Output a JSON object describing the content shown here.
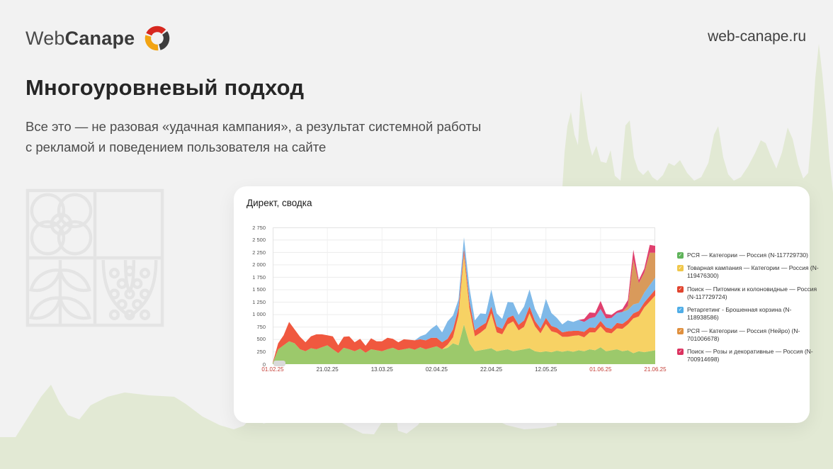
{
  "page": {
    "background": "#f2f2f2",
    "silhouette_color": "#e2e9d4",
    "card_background": "#ffffff"
  },
  "header": {
    "logo_part1": "Web",
    "logo_part2": "Canape",
    "logo_colors": {
      "red": "#d7281f",
      "dark": "#3d3d3d",
      "yellow": "#f2a413"
    },
    "site_url": "web-canape.ru"
  },
  "main": {
    "title": "Многоуровневый подход",
    "subtitle_line1": "Все это — не разовая «удачная кампания», а результат системной работы",
    "subtitle_line2": "с рекламой и поведением пользователя на сайте"
  },
  "chart_card": {
    "title": "Директ, сводка"
  },
  "chart_data": {
    "type": "area",
    "stacked": true,
    "title": "Директ, сводка",
    "grid": true,
    "legend_position": "right",
    "ylim": [
      0,
      2750
    ],
    "y_tick_step": 250,
    "y_tick_labels": [
      "0",
      "250",
      "500",
      "750",
      "1 000",
      "1 250",
      "1 500",
      "1 750",
      "2 000",
      "2 250",
      "2 500",
      "2 750"
    ],
    "x_tick_indices": [
      0,
      10,
      20,
      30,
      40,
      50,
      60,
      70
    ],
    "x_ticks": [
      {
        "label": "01.02.25",
        "holiday": true
      },
      {
        "label": "21.02.25",
        "holiday": false
      },
      {
        "label": "13.03.25",
        "holiday": false
      },
      {
        "label": "02.04.25",
        "holiday": false
      },
      {
        "label": "22.04.25",
        "holiday": false
      },
      {
        "label": "12.05.25",
        "holiday": false
      },
      {
        "label": "01.06.25",
        "holiday": true
      },
      {
        "label": "21.06.25",
        "holiday": true
      }
    ],
    "series": [
      {
        "name": "РСЯ — Категории — Россия (N-117729730)",
        "color": "#9cc96b",
        "swatch": "#5fb35a",
        "values": [
          20,
          300,
          380,
          460,
          420,
          300,
          260,
          320,
          300,
          340,
          380,
          300,
          220,
          330,
          300,
          260,
          310,
          230,
          300,
          280,
          260,
          300,
          330,
          280,
          300,
          320,
          290,
          340,
          300,
          330,
          360,
          300,
          330,
          420,
          380,
          800,
          420,
          260,
          280,
          300,
          320,
          260,
          280,
          300,
          260,
          280,
          300,
          320,
          260,
          240,
          260,
          240,
          270,
          250,
          270,
          250,
          280,
          260,
          300,
          280,
          340,
          260,
          280,
          300,
          260,
          280,
          220,
          260,
          240,
          260,
          280
        ]
      },
      {
        "name": "Товарная кампания — Категории — Россия (N-119476300)",
        "color": "#f7d264",
        "swatch": "#f0c74a",
        "values": [
          0,
          0,
          0,
          0,
          0,
          0,
          0,
          0,
          0,
          0,
          0,
          0,
          0,
          0,
          0,
          0,
          0,
          0,
          0,
          0,
          0,
          0,
          0,
          0,
          0,
          0,
          0,
          0,
          0,
          0,
          0,
          0,
          60,
          120,
          600,
          1400,
          700,
          300,
          350,
          420,
          700,
          380,
          320,
          500,
          600,
          400,
          450,
          700,
          500,
          380,
          550,
          420,
          360,
          300,
          280,
          320,
          300,
          280,
          340,
          360,
          420,
          380,
          340,
          420,
          450,
          520,
          700,
          700,
          900,
          1000,
          1100
        ]
      },
      {
        "name": "Поиск — Питомник и колоновидные — Россия (N-117729724)",
        "color": "#f0583f",
        "swatch": "#e1442e",
        "values": [
          10,
          120,
          200,
          390,
          280,
          250,
          180,
          240,
          300,
          260,
          200,
          260,
          160,
          220,
          260,
          180,
          200,
          140,
          220,
          180,
          200,
          230,
          180,
          160,
          200,
          170,
          190,
          160,
          180,
          200,
          170,
          140,
          120,
          160,
          140,
          120,
          140,
          120,
          130,
          110,
          140,
          120,
          110,
          130,
          120,
          110,
          130,
          140,
          110,
          100,
          120,
          110,
          100,
          90,
          110,
          100,
          90,
          110,
          100,
          90,
          110,
          100,
          90,
          110,
          100,
          90,
          100,
          110,
          100,
          110,
          120
        ]
      },
      {
        "name": "Ретаргетинг - Брошенная корзина (N-118938586)",
        "color": "#7fb9e8",
        "swatch": "#4fade7",
        "values": [
          0,
          0,
          0,
          0,
          0,
          0,
          0,
          0,
          0,
          0,
          0,
          0,
          0,
          0,
          0,
          0,
          0,
          0,
          0,
          0,
          0,
          0,
          0,
          0,
          0,
          0,
          0,
          60,
          120,
          180,
          260,
          200,
          350,
          280,
          180,
          230,
          280,
          200,
          260,
          180,
          340,
          260,
          200,
          320,
          260,
          200,
          280,
          340,
          240,
          180,
          380,
          260,
          200,
          160,
          220,
          180,
          220,
          200,
          180,
          220,
          240,
          180,
          220,
          200,
          240,
          200,
          180,
          160,
          200,
          220,
          240
        ]
      },
      {
        "name": "РСЯ — Категории — Россия (Нейро) (N-701006678)",
        "color": "#d99a5b",
        "swatch": "#e0903e",
        "values": [
          0,
          0,
          0,
          0,
          0,
          0,
          0,
          0,
          0,
          0,
          0,
          0,
          0,
          0,
          0,
          0,
          0,
          0,
          0,
          0,
          0,
          0,
          0,
          0,
          0,
          0,
          0,
          0,
          0,
          0,
          0,
          0,
          0,
          0,
          0,
          0,
          0,
          0,
          0,
          0,
          0,
          0,
          0,
          0,
          0,
          0,
          0,
          0,
          0,
          0,
          0,
          0,
          0,
          0,
          0,
          0,
          0,
          0,
          0,
          0,
          0,
          0,
          0,
          0,
          0,
          80,
          900,
          400,
          400,
          650,
          500
        ]
      },
      {
        "name": "Поиск — Розы и декоративные — Россия (N-700914698)",
        "color": "#e0406e",
        "swatch": "#dc3360",
        "values": [
          0,
          0,
          0,
          0,
          0,
          0,
          0,
          0,
          0,
          0,
          0,
          0,
          0,
          0,
          0,
          0,
          0,
          0,
          0,
          0,
          0,
          0,
          0,
          0,
          0,
          0,
          0,
          0,
          0,
          0,
          0,
          0,
          0,
          0,
          0,
          0,
          0,
          0,
          0,
          0,
          0,
          0,
          0,
          0,
          0,
          0,
          0,
          0,
          0,
          0,
          0,
          0,
          0,
          0,
          0,
          0,
          0,
          60,
          120,
          80,
          160,
          90,
          60,
          40,
          60,
          120,
          200,
          60,
          80,
          160,
          140
        ]
      }
    ]
  },
  "icons": {
    "legend_check": "✓"
  }
}
